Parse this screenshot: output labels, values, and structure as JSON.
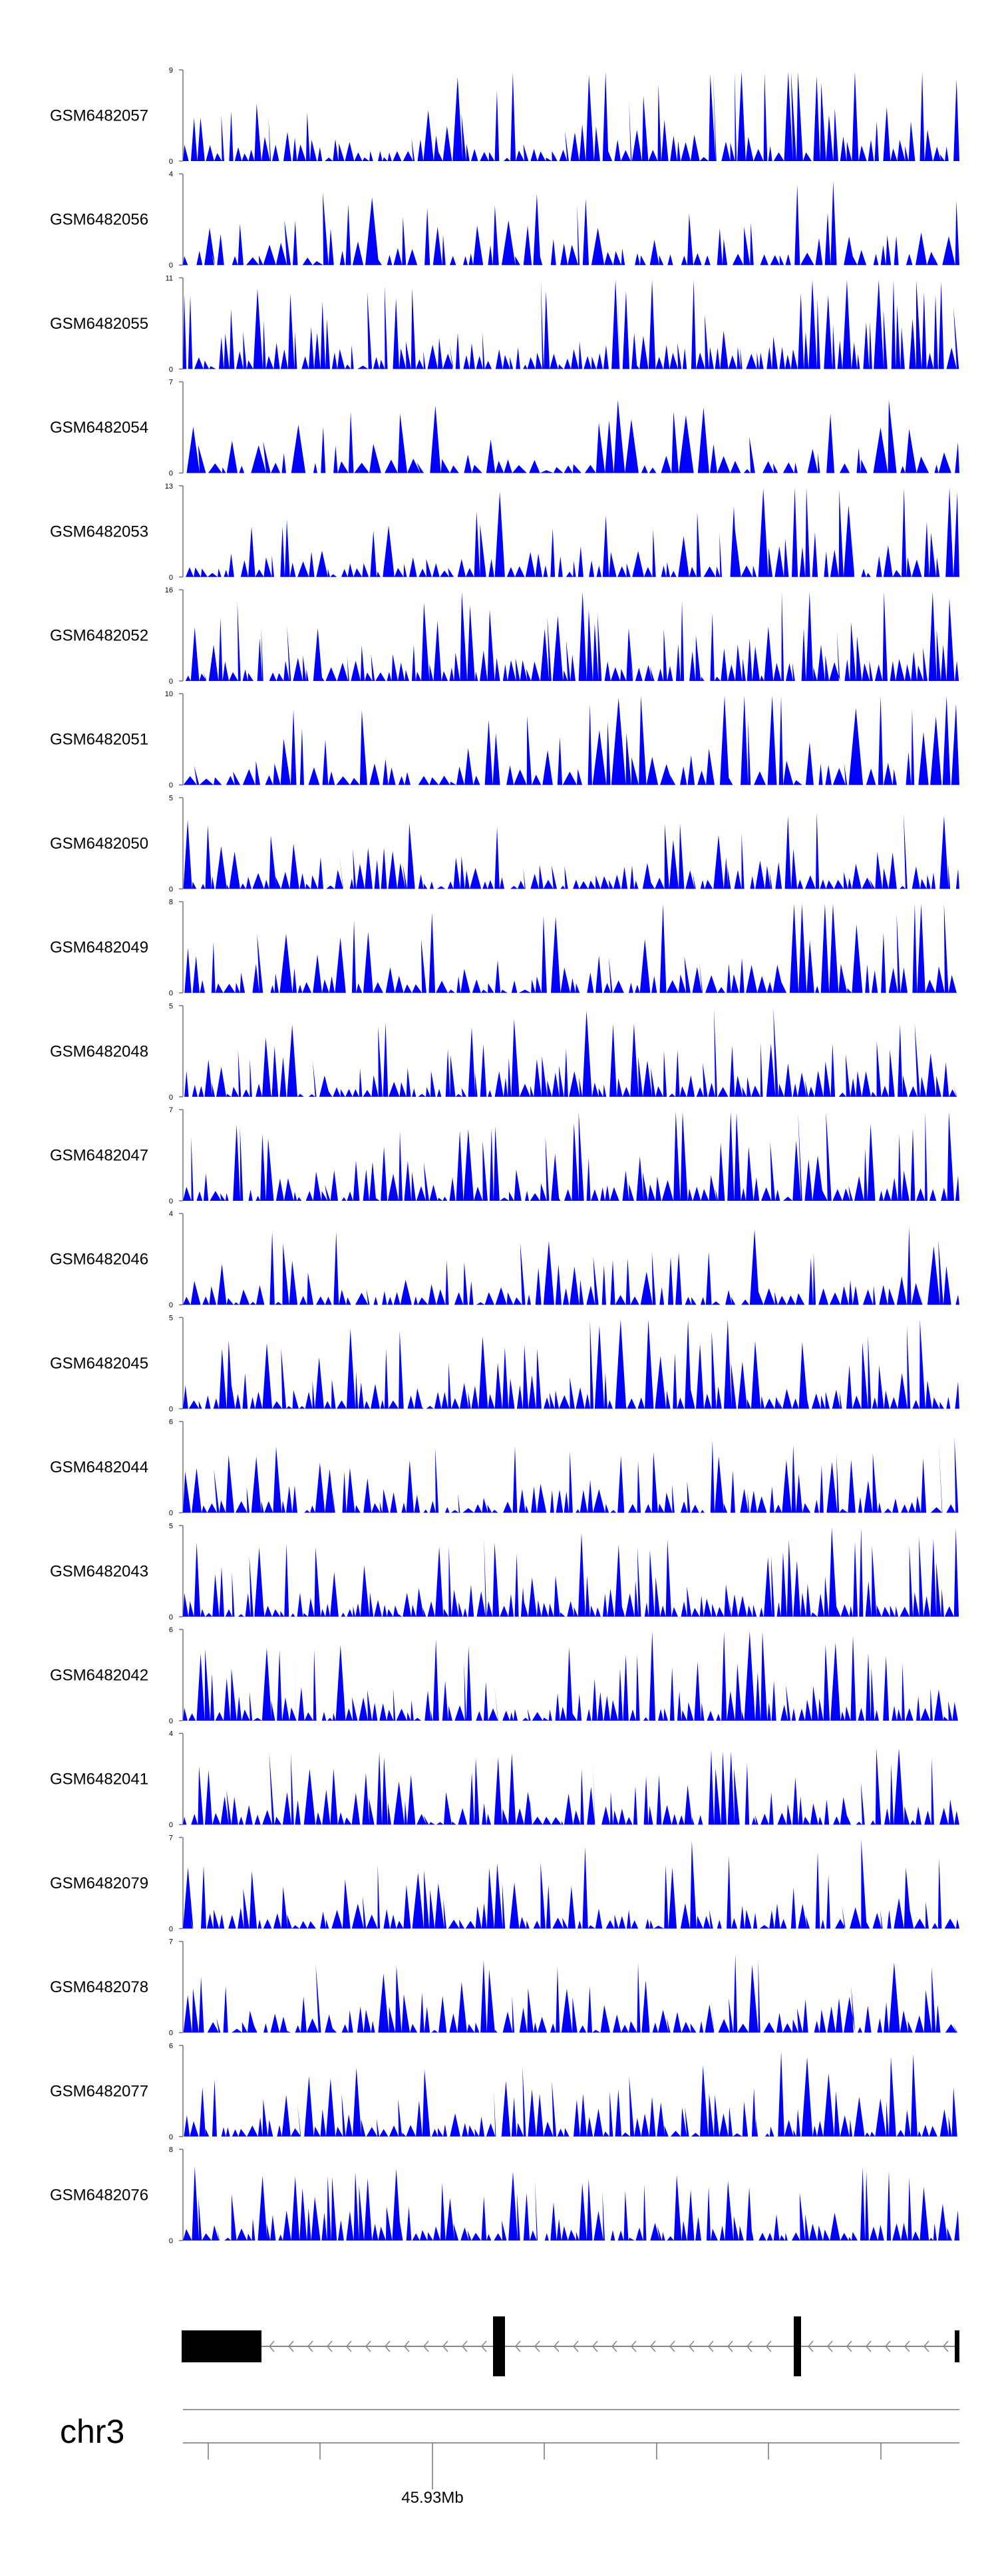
{
  "chart_data": {
    "type": "area",
    "chromosome": "chr3",
    "axis_label": "45.93Mb",
    "fill_color": "#0000ff",
    "gene_color": "#000000",
    "grid": false,
    "tracks": [
      {
        "name": "GSM6482057",
        "ymax": "9",
        "ymin": "0",
        "seed": 57,
        "n": 110,
        "trend": 1.2
      },
      {
        "name": "GSM6482056",
        "ymax": "4",
        "ymin": "0",
        "seed": 56,
        "n": 85,
        "trend": 0.6
      },
      {
        "name": "GSM6482055",
        "ymax": "11",
        "ymin": "0",
        "seed": 55,
        "n": 120,
        "trend": 1.5
      },
      {
        "name": "GSM6482054",
        "ymax": "7",
        "ymin": "0",
        "seed": 54,
        "n": 70,
        "trend": 0.2
      },
      {
        "name": "GSM6482053",
        "ymax": "13",
        "ymin": "0",
        "seed": 53,
        "n": 100,
        "trend": 0.9
      },
      {
        "name": "GSM6482052",
        "ymax": "16",
        "ymin": "0",
        "seed": 52,
        "n": 120,
        "trend": 1.4
      },
      {
        "name": "GSM6482051",
        "ymax": "10",
        "ymin": "0",
        "seed": 51,
        "n": 80,
        "trend": 1.3
      },
      {
        "name": "GSM6482050",
        "ymax": "5",
        "ymin": "0",
        "seed": 50,
        "n": 110,
        "trend": 0.2
      },
      {
        "name": "GSM6482049",
        "ymax": "8",
        "ymin": "0",
        "seed": 49,
        "n": 95,
        "trend": 1.0
      },
      {
        "name": "GSM6482048",
        "ymax": "5",
        "ymin": "0",
        "seed": 48,
        "n": 120,
        "trend": 0.7
      },
      {
        "name": "GSM6482047",
        "ymax": "7",
        "ymin": "0",
        "seed": 47,
        "n": 110,
        "trend": 0.9
      },
      {
        "name": "GSM6482046",
        "ymax": "4",
        "ymin": "0",
        "seed": 46,
        "n": 95,
        "trend": 0.1
      },
      {
        "name": "GSM6482045",
        "ymax": "5",
        "ymin": "0",
        "seed": 45,
        "n": 115,
        "trend": 0.7
      },
      {
        "name": "GSM6482044",
        "ymax": "6",
        "ymin": "0",
        "seed": 44,
        "n": 105,
        "trend": 0.2
      },
      {
        "name": "GSM6482043",
        "ymax": "5",
        "ymin": "0",
        "seed": 43,
        "n": 130,
        "trend": 0.5
      },
      {
        "name": "GSM6482042",
        "ymax": "6",
        "ymin": "0",
        "seed": 42,
        "n": 120,
        "trend": 0.7
      },
      {
        "name": "GSM6482041",
        "ymax": "4",
        "ymin": "0",
        "seed": 41,
        "n": 110,
        "trend": 0.1
      },
      {
        "name": "GSM6482079",
        "ymax": "7",
        "ymin": "0",
        "seed": 79,
        "n": 105,
        "trend": 0.4
      },
      {
        "name": "GSM6482078",
        "ymax": "7",
        "ymin": "0",
        "seed": 78,
        "n": 100,
        "trend": 0.2
      },
      {
        "name": "GSM6482077",
        "ymax": "6",
        "ymin": "0",
        "seed": 77,
        "n": 110,
        "trend": 0.3
      },
      {
        "name": "GSM6482076",
        "ymax": "8",
        "ymin": "0",
        "seed": 76,
        "n": 115,
        "trend": 0.1
      }
    ]
  }
}
